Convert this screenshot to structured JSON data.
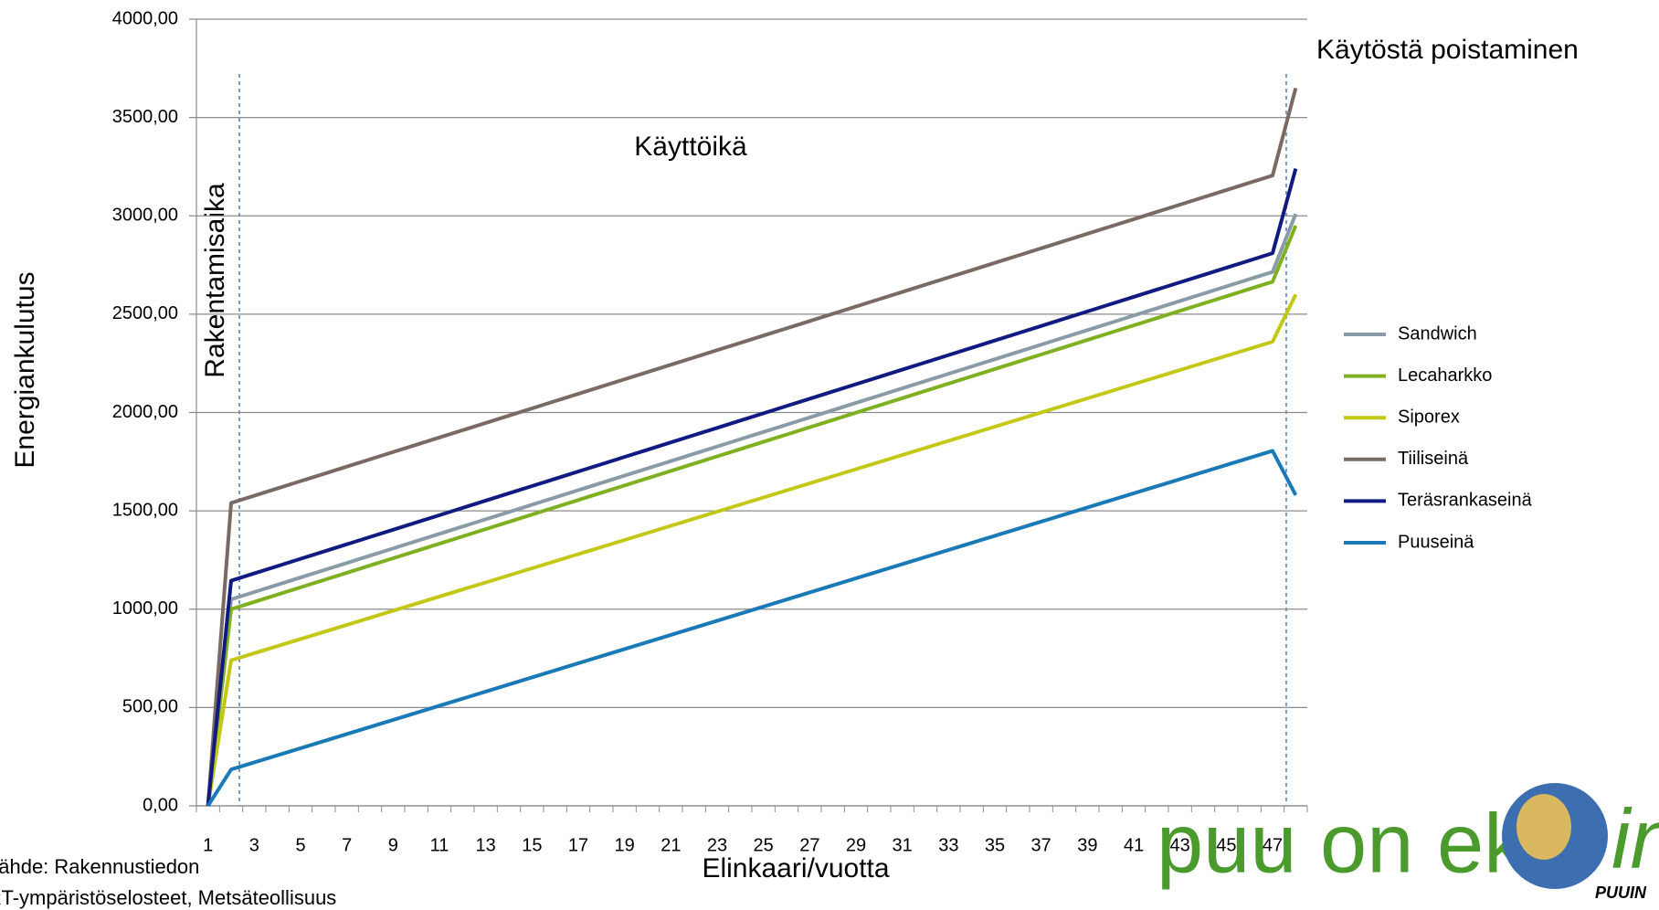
{
  "chart_data": {
    "type": "line",
    "y_label": "Energiankulutus",
    "x_label": "Elinkaari/vuotta",
    "categories": [
      1,
      null,
      3,
      null,
      5,
      null,
      7,
      null,
      9,
      null,
      11,
      null,
      13,
      null,
      15,
      null,
      17,
      null,
      19,
      null,
      21,
      null,
      23,
      null,
      25,
      null,
      27,
      null,
      29,
      null,
      31,
      null,
      33,
      null,
      35,
      null,
      37,
      null,
      39,
      null,
      41,
      null,
      43,
      null,
      45,
      null,
      47,
      null
    ],
    "ylim": [
      0,
      4000
    ],
    "yticks": [
      {
        "value": 0,
        "label": "0,00"
      },
      {
        "value": 500,
        "label": "500,00"
      },
      {
        "value": 1000,
        "label": "1000,00"
      },
      {
        "value": 1500,
        "label": "1500,00"
      },
      {
        "value": 2000,
        "label": "2000,00"
      },
      {
        "value": 2500,
        "label": "2500,00"
      },
      {
        "value": 3000,
        "label": "3000,00"
      },
      {
        "value": 3500,
        "label": "3500,00"
      },
      {
        "value": 4000,
        "label": "4000,00"
      }
    ],
    "grid": true,
    "legend": "right",
    "annotations": [
      "Käyttöikä",
      "Rakentamisaika",
      "Käytöstä poistaminen"
    ],
    "source": [
      "Lähde: Rakennustiedon",
      "RT-ympäristöselosteet, Metsäteollisuus"
    ],
    "logo": {
      "text": "puu on ek",
      "tail": "in",
      "sub": "PUUIN"
    },
    "series": [
      {
        "name": "Sandwich",
        "color": "#8a9ba8",
        "values": [
          0,
          1050,
          1087,
          1124,
          1161,
          1198,
          1235,
          1272,
          1309,
          1346,
          1383,
          1420,
          1457,
          1494,
          1531,
          1568,
          1605,
          1642,
          1679,
          1716,
          1753,
          1790,
          1827,
          1864,
          1901,
          1938,
          1975,
          2012,
          2049,
          2086,
          2123,
          2160,
          2197,
          2234,
          2271,
          2308,
          2345,
          2382,
          2419,
          2456,
          2493,
          2530,
          2567,
          2604,
          2641,
          2678,
          2715,
          3010
        ]
      },
      {
        "name": "Lecaharkko",
        "color": "#7fb020",
        "values": [
          0,
          1000,
          1037,
          1074,
          1111,
          1148,
          1185,
          1222,
          1259,
          1296,
          1333,
          1370,
          1407,
          1444,
          1481,
          1518,
          1555,
          1592,
          1629,
          1666,
          1703,
          1740,
          1777,
          1814,
          1851,
          1888,
          1925,
          1962,
          1999,
          2036,
          2073,
          2110,
          2147,
          2184,
          2221,
          2258,
          2295,
          2332,
          2369,
          2406,
          2443,
          2480,
          2517,
          2554,
          2591,
          2628,
          2665,
          2950
        ]
      },
      {
        "name": "Siporex",
        "color": "#c3c817",
        "values": [
          0,
          740,
          776,
          812,
          848,
          884,
          920,
          956,
          992,
          1028,
          1064,
          1100,
          1136,
          1172,
          1208,
          1244,
          1280,
          1316,
          1352,
          1388,
          1424,
          1460,
          1496,
          1532,
          1568,
          1604,
          1640,
          1676,
          1712,
          1748,
          1784,
          1820,
          1856,
          1892,
          1928,
          1964,
          2000,
          2036,
          2072,
          2108,
          2144,
          2180,
          2216,
          2252,
          2288,
          2324,
          2360,
          2600
        ]
      },
      {
        "name": "Tiiliseinä",
        "color": "#7a6a64",
        "values": [
          0,
          1540,
          1577,
          1614,
          1651,
          1688,
          1725,
          1762,
          1799,
          1836,
          1873,
          1910,
          1947,
          1984,
          2021,
          2058,
          2095,
          2132,
          2169,
          2206,
          2243,
          2280,
          2317,
          2354,
          2391,
          2428,
          2465,
          2502,
          2539,
          2576,
          2613,
          2650,
          2687,
          2724,
          2761,
          2798,
          2835,
          2872,
          2909,
          2946,
          2983,
          3020,
          3057,
          3094,
          3131,
          3168,
          3205,
          3650
        ]
      },
      {
        "name": "Teräsrankaseinä",
        "color": "#101a80",
        "values": [
          0,
          1145,
          1182,
          1219,
          1256,
          1293,
          1330,
          1367,
          1404,
          1441,
          1478,
          1515,
          1552,
          1589,
          1626,
          1663,
          1700,
          1737,
          1774,
          1811,
          1848,
          1885,
          1922,
          1959,
          1996,
          2033,
          2070,
          2107,
          2144,
          2181,
          2218,
          2255,
          2292,
          2329,
          2366,
          2403,
          2440,
          2477,
          2514,
          2551,
          2588,
          2625,
          2662,
          2699,
          2736,
          2773,
          2810,
          3240
        ]
      },
      {
        "name": "Puuseinä",
        "color": "#1a7ab8",
        "values": [
          0,
          185,
          221,
          257,
          293,
          329,
          365,
          401,
          437,
          473,
          509,
          545,
          581,
          617,
          653,
          689,
          725,
          761,
          797,
          833,
          869,
          905,
          941,
          977,
          1013,
          1049,
          1085,
          1121,
          1157,
          1193,
          1229,
          1265,
          1301,
          1337,
          1373,
          1409,
          1445,
          1481,
          1517,
          1553,
          1589,
          1625,
          1661,
          1697,
          1733,
          1769,
          1805,
          1580
        ]
      }
    ]
  }
}
